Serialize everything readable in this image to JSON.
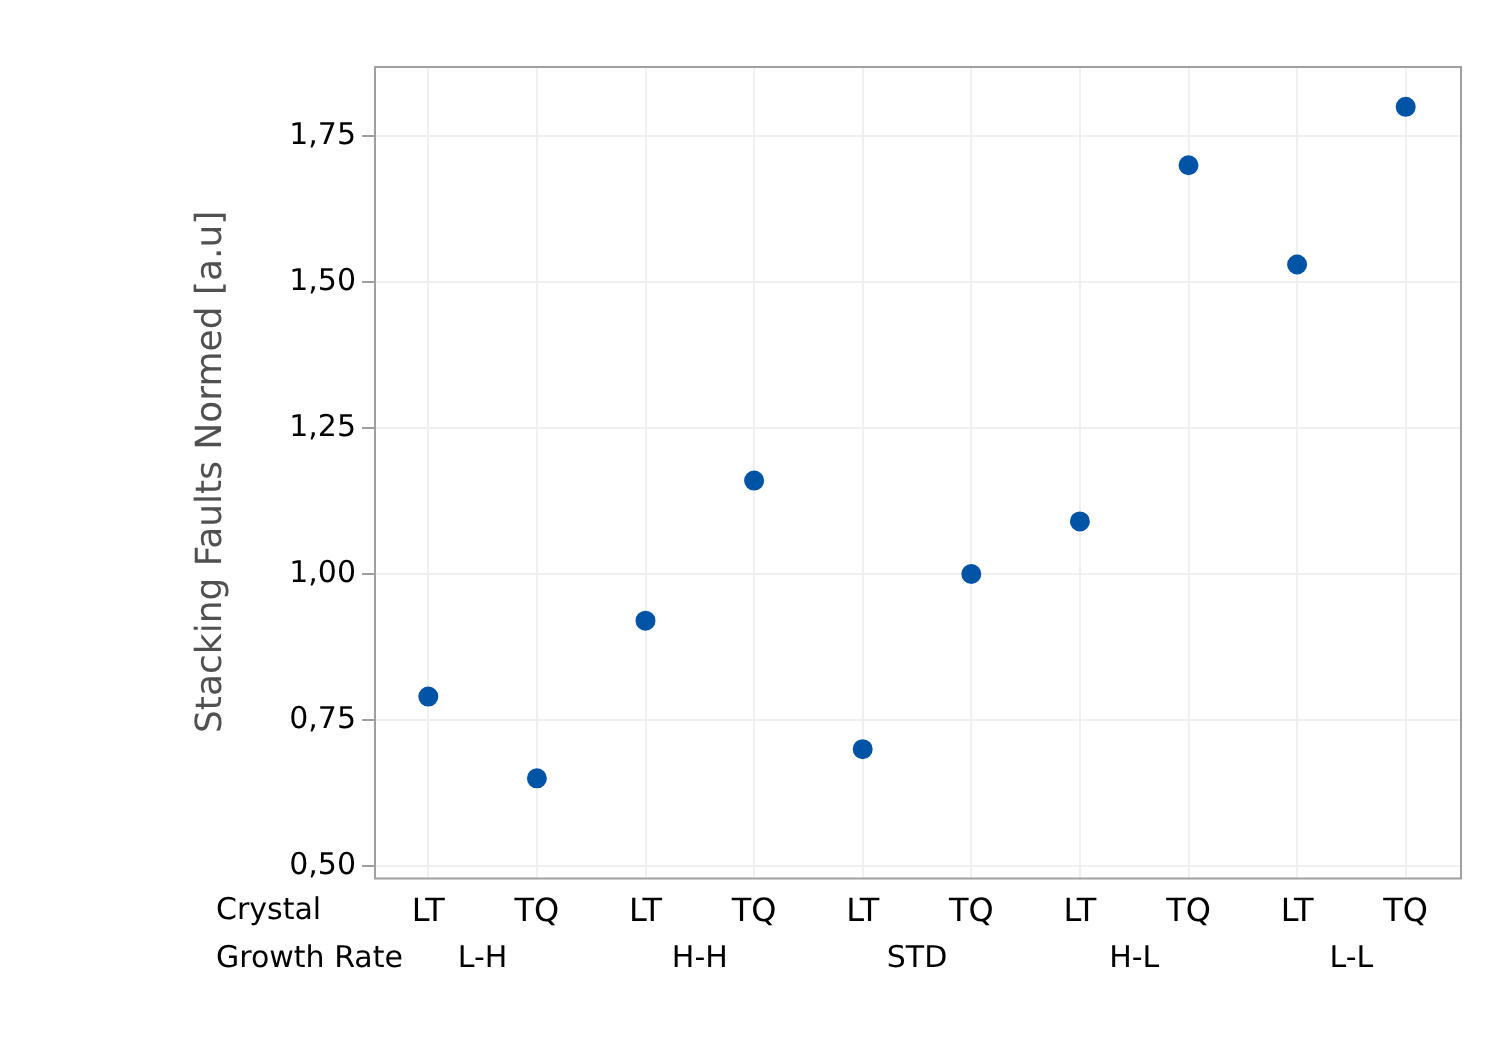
{
  "chart_data": {
    "type": "scatter",
    "ylabel": "Stacking Faults Normed [a.u]",
    "categories": [
      "LT",
      "TQ",
      "LT",
      "TQ",
      "LT",
      "TQ",
      "LT",
      "TQ",
      "LT",
      "TQ"
    ],
    "series": [
      {
        "color": "#0054a6",
        "values": [
          0.79,
          0.65,
          0.92,
          1.16,
          0.7,
          1.0,
          1.09,
          1.7,
          1.53,
          1.8
        ]
      }
    ],
    "ylim": [
      0.48,
      1.87
    ],
    "yticks": [
      {
        "value": 0.5,
        "label": "0,50"
      },
      {
        "value": 0.75,
        "label": "0,75"
      },
      {
        "value": 1.0,
        "label": "1,00"
      },
      {
        "value": 1.25,
        "label": "1,25"
      },
      {
        "value": 1.5,
        "label": "1,50"
      },
      {
        "value": 1.75,
        "label": "1,75"
      }
    ],
    "annotations": [
      "Crystal",
      "Growth Rate",
      "L-H",
      "H-H",
      "STD",
      "H-L",
      "L-L"
    ],
    "grid": true,
    "legend": false,
    "marker": "circle"
  }
}
